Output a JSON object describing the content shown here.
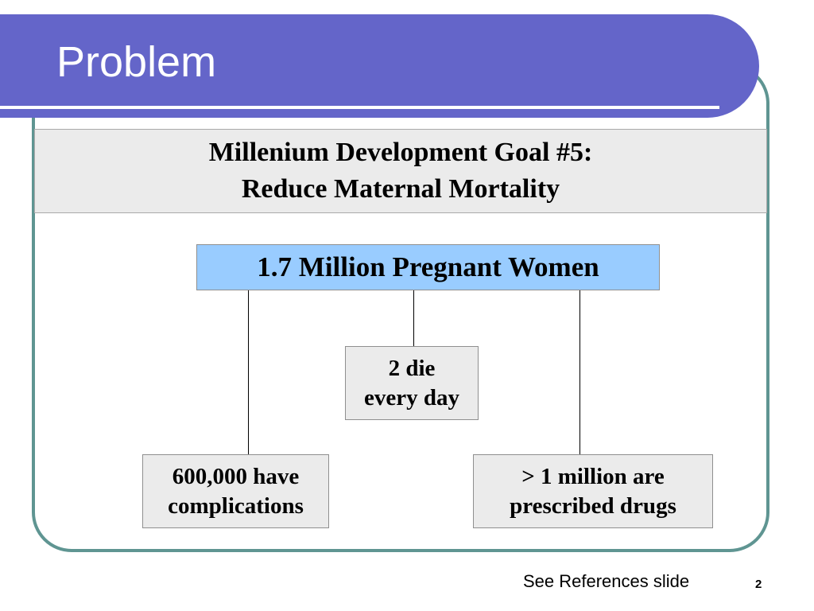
{
  "slide": {
    "title": "Problem",
    "page_number": "2",
    "footer_note": "See References slide"
  },
  "goal": {
    "line1": "Millenium Development Goal #5:",
    "line2": "Reduce Maternal Mortality"
  },
  "diagram": {
    "root": "1.7 Million Pregnant Women",
    "middle": {
      "line1": "2 die",
      "line2": "every day"
    },
    "left": {
      "line1": "600,000 have",
      "line2": "complications"
    },
    "right": {
      "line1": "> 1 million are",
      "line2": "prescribed drugs"
    }
  },
  "colors": {
    "title_bar": "#6465c9",
    "frame": "#5f9592",
    "root_box": "#99ccff",
    "grey_box": "#ebebeb"
  }
}
